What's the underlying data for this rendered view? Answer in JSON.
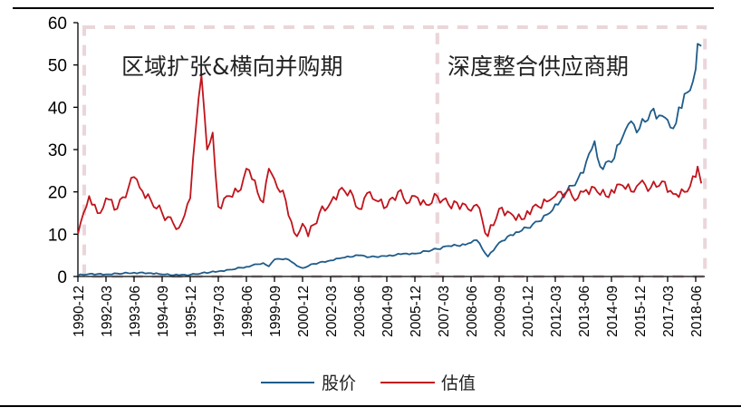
{
  "chart_data": {
    "type": "line",
    "title": "",
    "xlabel": "",
    "ylabel": "",
    "ylim": [
      0,
      60
    ],
    "yticks": [
      0,
      10,
      20,
      30,
      40,
      50,
      60
    ],
    "grid": false,
    "legend_position": "bottom",
    "x_tick_labels": [
      "1990-12",
      "1992-03",
      "1993-06",
      "1994-09",
      "1995-12",
      "1997-03",
      "1998-06",
      "1999-09",
      "2000-12",
      "2002-03",
      "2003-06",
      "2004-09",
      "2005-12",
      "2007-03",
      "2008-06",
      "2009-09",
      "2010-12",
      "2012-03",
      "2013-06",
      "2014-09",
      "2015-12",
      "2017-03",
      "2018-06"
    ],
    "phases": [
      {
        "label": "区域扩张&横向并购期",
        "start": "1990-12",
        "end": "2006-12"
      },
      {
        "label": "深度整合供应商期",
        "start": "2006-12",
        "end": "2018-09"
      }
    ],
    "series": [
      {
        "name": "股价",
        "color": "#1f5c8a",
        "points": [
          [
            "1990-12",
            0.3
          ],
          [
            "1991-06",
            0.6
          ],
          [
            "1992-03",
            0.5
          ],
          [
            "1992-09",
            0.7
          ],
          [
            "1993-06",
            0.9
          ],
          [
            "1994-03",
            0.8
          ],
          [
            "1994-09",
            0.5
          ],
          [
            "1995-06",
            0.3
          ],
          [
            "1995-12",
            0.4
          ],
          [
            "1996-06",
            0.8
          ],
          [
            "1997-03",
            1.2
          ],
          [
            "1997-09",
            1.6
          ],
          [
            "1998-06",
            2.3
          ],
          [
            "1998-12",
            2.9
          ],
          [
            "1999-03",
            3.2
          ],
          [
            "1999-06",
            2.4
          ],
          [
            "1999-09",
            4.0
          ],
          [
            "2000-03",
            4.2
          ],
          [
            "2000-06",
            3.5
          ],
          [
            "2000-09",
            2.5
          ],
          [
            "2000-12",
            2.0
          ],
          [
            "2001-06",
            3.0
          ],
          [
            "2002-03",
            3.8
          ],
          [
            "2002-09",
            4.4
          ],
          [
            "2003-06",
            5.0
          ],
          [
            "2003-12",
            4.6
          ],
          [
            "2004-09",
            4.8
          ],
          [
            "2005-06",
            5.4
          ],
          [
            "2005-12",
            5.4
          ],
          [
            "2006-06",
            6.0
          ],
          [
            "2006-12",
            6.5
          ],
          [
            "2007-06",
            7.2
          ],
          [
            "2008-03",
            7.5
          ],
          [
            "2008-06",
            8.0
          ],
          [
            "2008-09",
            8.6
          ],
          [
            "2009-03",
            4.7
          ],
          [
            "2009-09",
            8.0
          ],
          [
            "2010-06",
            10.5
          ],
          [
            "2010-12",
            11.5
          ],
          [
            "2011-06",
            13.0
          ],
          [
            "2011-12",
            15.0
          ],
          [
            "2012-06",
            18.0
          ],
          [
            "2012-09",
            20.0
          ],
          [
            "2013-03",
            23.0
          ],
          [
            "2013-06",
            24.5
          ],
          [
            "2013-09",
            29.0
          ],
          [
            "2013-12",
            32.0
          ],
          [
            "2014-03",
            26.0
          ],
          [
            "2014-09",
            27.0
          ],
          [
            "2015-03",
            33.0
          ],
          [
            "2015-06",
            36.0
          ],
          [
            "2015-12",
            35.0
          ],
          [
            "2016-06",
            39.0
          ],
          [
            "2016-12",
            38.0
          ],
          [
            "2017-03",
            37.0
          ],
          [
            "2017-06",
            35.0
          ],
          [
            "2017-09",
            40.0
          ],
          [
            "2018-03",
            44.0
          ],
          [
            "2018-06",
            49.0
          ],
          [
            "2018-07",
            55.0
          ],
          [
            "2018-09",
            54.5
          ]
        ]
      },
      {
        "name": "估值",
        "color": "#c0141c",
        "points": [
          [
            "1990-12",
            10.0
          ],
          [
            "1991-03",
            15.0
          ],
          [
            "1991-06",
            19.0
          ],
          [
            "1991-09",
            17.0
          ],
          [
            "1991-12",
            15.0
          ],
          [
            "1992-03",
            18.5
          ],
          [
            "1992-09",
            16.0
          ],
          [
            "1993-03",
            21.0
          ],
          [
            "1993-06",
            23.5
          ],
          [
            "1993-09",
            21.0
          ],
          [
            "1994-03",
            18.0
          ],
          [
            "1994-09",
            15.0
          ],
          [
            "1995-03",
            12.5
          ],
          [
            "1995-06",
            11.5
          ],
          [
            "1995-09",
            14.5
          ],
          [
            "1995-12",
            18.5
          ],
          [
            "1996-03",
            35.0
          ],
          [
            "1996-06",
            47.5
          ],
          [
            "1996-09",
            30.0
          ],
          [
            "1996-12",
            34.0
          ],
          [
            "1997-03",
            16.5
          ],
          [
            "1997-09",
            19.0
          ],
          [
            "1998-03",
            20.5
          ],
          [
            "1998-06",
            25.5
          ],
          [
            "1998-09",
            23.0
          ],
          [
            "1999-03",
            17.5
          ],
          [
            "1999-06",
            25.5
          ],
          [
            "1999-09",
            23.0
          ],
          [
            "2000-03",
            18.0
          ],
          [
            "2000-06",
            13.0
          ],
          [
            "2000-09",
            9.5
          ],
          [
            "2000-12",
            12.5
          ],
          [
            "2001-03",
            9.5
          ],
          [
            "2001-09",
            15.0
          ],
          [
            "2002-03",
            17.5
          ],
          [
            "2002-09",
            21.0
          ],
          [
            "2003-03",
            19.0
          ],
          [
            "2003-06",
            16.0
          ],
          [
            "2003-12",
            20.0
          ],
          [
            "2004-03",
            18.0
          ],
          [
            "2004-09",
            16.5
          ],
          [
            "2005-03",
            20.0
          ],
          [
            "2005-09",
            17.5
          ],
          [
            "2005-12",
            19.0
          ],
          [
            "2006-06",
            17.0
          ],
          [
            "2006-12",
            19.0
          ],
          [
            "2007-06",
            17.0
          ],
          [
            "2008-03",
            17.0
          ],
          [
            "2008-06",
            15.5
          ],
          [
            "2008-09",
            17.0
          ],
          [
            "2009-03",
            9.5
          ],
          [
            "2009-09",
            16.0
          ],
          [
            "2010-03",
            15.0
          ],
          [
            "2010-09",
            13.5
          ],
          [
            "2010-12",
            15.5
          ],
          [
            "2011-06",
            16.5
          ],
          [
            "2011-12",
            18.0
          ],
          [
            "2012-03",
            19.0
          ],
          [
            "2012-09",
            20.0
          ],
          [
            "2013-03",
            18.5
          ],
          [
            "2013-06",
            20.0
          ],
          [
            "2013-12",
            21.0
          ],
          [
            "2014-06",
            19.0
          ],
          [
            "2014-09",
            20.5
          ],
          [
            "2015-03",
            21.5
          ],
          [
            "2015-09",
            20.0
          ],
          [
            "2015-12",
            22.0
          ],
          [
            "2016-06",
            21.0
          ],
          [
            "2016-12",
            22.5
          ],
          [
            "2017-06",
            19.5
          ],
          [
            "2017-12",
            20.0
          ],
          [
            "2018-06",
            23.5
          ],
          [
            "2018-07",
            26.0
          ],
          [
            "2018-09",
            22.0
          ]
        ]
      }
    ]
  },
  "axis": {
    "y_labels": [
      "0",
      "10",
      "20",
      "30",
      "40",
      "50",
      "60"
    ],
    "x_labels": [
      "1990-12",
      "1992-03",
      "1993-06",
      "1994-09",
      "1995-12",
      "1997-03",
      "1998-06",
      "1999-09",
      "2000-12",
      "2002-03",
      "2003-06",
      "2004-09",
      "2005-12",
      "2007-03",
      "2008-06",
      "2009-09",
      "2010-12",
      "2012-03",
      "2013-06",
      "2014-09",
      "2015-12",
      "2017-03",
      "2018-06"
    ]
  },
  "annotations": {
    "phase1": "区域扩张&横向并购期",
    "phase2": "深度整合供应商期"
  },
  "legend": {
    "items": [
      {
        "label": "股价",
        "color": "#1f5c8a"
      },
      {
        "label": "估值",
        "color": "#c0141c"
      }
    ]
  },
  "colors": {
    "stock": "#1f5c8a",
    "valuation": "#c0141c",
    "phase_box": "#ead6da"
  }
}
